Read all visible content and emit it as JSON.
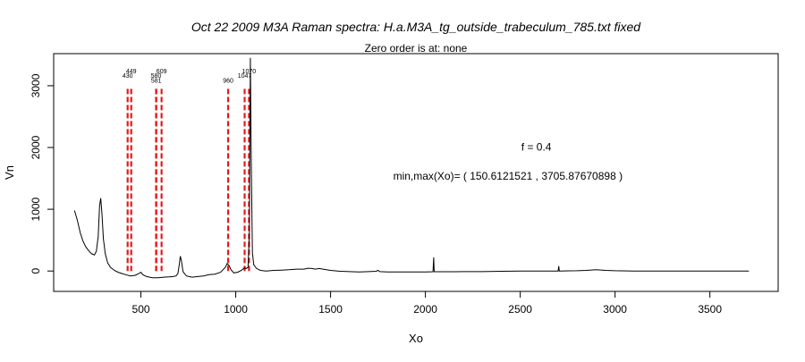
{
  "chart_data": {
    "type": "line",
    "title": "Oct 22 2009 M3A Raman spectra: H.a.M3A_tg_outside_trabeculum_785.txt fixed",
    "subtitle": "Zero order is at:  none",
    "xlabel": "Xo",
    "ylabel": "Vn",
    "xlim": [
      40,
      3860
    ],
    "ylim": [
      -330,
      3520
    ],
    "x_ticks": [
      500,
      1000,
      1500,
      2000,
      2500,
      3000,
      3500
    ],
    "x_tick_labels": [
      "500",
      "1000",
      "1500",
      "2000",
      "2500",
      "3000",
      "3500"
    ],
    "y_ticks": [
      0,
      1000,
      2000,
      3000
    ],
    "y_tick_labels": [
      "0",
      "1000",
      "2000",
      "3000"
    ],
    "annotations": [
      {
        "text": "f =  0.4",
        "x": 2585,
        "y": 1950
      },
      {
        "text": "min,max(Xo)= ( 150.6121521 , 3705.87670898 )",
        "x": 2435,
        "y": 1480
      }
    ],
    "marker_color": "#e41a1c",
    "line_color": "#000000",
    "markers": [
      {
        "x": 430,
        "label": "430",
        "label_y": 3130
      },
      {
        "x": 449,
        "label": "449",
        "label_y": 3200
      },
      {
        "x": 580,
        "label": "580",
        "label_y": 3130
      },
      {
        "x": 581,
        "label": "581",
        "label_y": 3050
      },
      {
        "x": 609,
        "label": "609",
        "label_y": 3200
      },
      {
        "x": 960,
        "label": "960",
        "label_y": 3050
      },
      {
        "x": 1047,
        "label": "1047",
        "label_y": 3130
      },
      {
        "x": 1070,
        "label": "1070",
        "label_y": 3200
      }
    ],
    "marker_top": 2950,
    "marker_bottom": 0,
    "series": [
      {
        "points": [
          [
            150,
            980
          ],
          [
            165,
            820
          ],
          [
            180,
            620
          ],
          [
            195,
            480
          ],
          [
            210,
            390
          ],
          [
            225,
            330
          ],
          [
            240,
            280
          ],
          [
            255,
            260
          ],
          [
            265,
            320
          ],
          [
            275,
            560
          ],
          [
            282,
            1050
          ],
          [
            288,
            1180
          ],
          [
            294,
            950
          ],
          [
            302,
            520
          ],
          [
            312,
            280
          ],
          [
            325,
            130
          ],
          [
            340,
            60
          ],
          [
            360,
            10
          ],
          [
            380,
            -20
          ],
          [
            400,
            -40
          ],
          [
            420,
            -60
          ],
          [
            445,
            -80
          ],
          [
            470,
            -70
          ],
          [
            490,
            -40
          ],
          [
            500,
            -20
          ],
          [
            510,
            -60
          ],
          [
            530,
            -90
          ],
          [
            560,
            -110
          ],
          [
            590,
            -110
          ],
          [
            620,
            -100
          ],
          [
            650,
            -95
          ],
          [
            670,
            -90
          ],
          [
            685,
            -80
          ],
          [
            695,
            -40
          ],
          [
            702,
            100
          ],
          [
            708,
            240
          ],
          [
            714,
            160
          ],
          [
            722,
            -10
          ],
          [
            740,
            -80
          ],
          [
            770,
            -100
          ],
          [
            800,
            -90
          ],
          [
            830,
            -80
          ],
          [
            860,
            -60
          ],
          [
            890,
            -50
          ],
          [
            920,
            -20
          ],
          [
            945,
            60
          ],
          [
            955,
            120
          ],
          [
            965,
            90
          ],
          [
            975,
            20
          ],
          [
            990,
            -30
          ],
          [
            1010,
            -20
          ],
          [
            1030,
            10
          ],
          [
            1045,
            50
          ],
          [
            1055,
            40
          ],
          [
            1065,
            60
          ],
          [
            1072,
            600
          ],
          [
            1077,
            3450
          ],
          [
            1082,
            1800
          ],
          [
            1088,
            300
          ],
          [
            1095,
            100
          ],
          [
            1110,
            40
          ],
          [
            1130,
            10
          ],
          [
            1160,
            0
          ],
          [
            1200,
            10
          ],
          [
            1240,
            15
          ],
          [
            1280,
            20
          ],
          [
            1320,
            30
          ],
          [
            1360,
            30
          ],
          [
            1380,
            45
          ],
          [
            1400,
            40
          ],
          [
            1420,
            30
          ],
          [
            1440,
            40
          ],
          [
            1460,
            30
          ],
          [
            1500,
            10
          ],
          [
            1550,
            -5
          ],
          [
            1600,
            -10
          ],
          [
            1650,
            -15
          ],
          [
            1700,
            -10
          ],
          [
            1740,
            -5
          ],
          [
            1750,
            10
          ],
          [
            1760,
            -10
          ],
          [
            1800,
            -15
          ],
          [
            1850,
            -15
          ],
          [
            1900,
            -15
          ],
          [
            1950,
            -15
          ],
          [
            2000,
            -15
          ],
          [
            2040,
            -12
          ],
          [
            2044,
            220
          ],
          [
            2046,
            -12
          ],
          [
            2100,
            -12
          ],
          [
            2200,
            -10
          ],
          [
            2300,
            -10
          ],
          [
            2400,
            -5
          ],
          [
            2500,
            0
          ],
          [
            2600,
            0
          ],
          [
            2700,
            0
          ],
          [
            2703,
            80
          ],
          [
            2706,
            0
          ],
          [
            2800,
            5
          ],
          [
            2850,
            10
          ],
          [
            2900,
            20
          ],
          [
            2950,
            10
          ],
          [
            3000,
            5
          ],
          [
            3100,
            0
          ],
          [
            3200,
            0
          ],
          [
            3300,
            0
          ],
          [
            3400,
            0
          ],
          [
            3500,
            0
          ],
          [
            3600,
            0
          ],
          [
            3706,
            0
          ]
        ]
      }
    ]
  }
}
